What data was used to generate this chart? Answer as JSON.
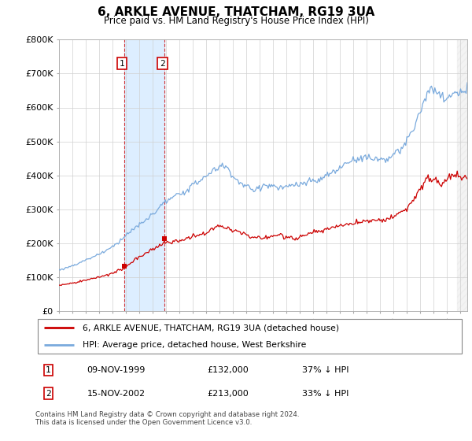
{
  "title": "6, ARKLE AVENUE, THATCHAM, RG19 3UA",
  "subtitle": "Price paid vs. HM Land Registry's House Price Index (HPI)",
  "legend_line1": "6, ARKLE AVENUE, THATCHAM, RG19 3UA (detached house)",
  "legend_line2": "HPI: Average price, detached house, West Berkshire",
  "transaction1_date": "09-NOV-1999",
  "transaction1_price": "£132,000",
  "transaction1_hpi": "37% ↓ HPI",
  "transaction1_year": 1999.87,
  "transaction1_value": 132000,
  "transaction2_date": "15-NOV-2002",
  "transaction2_price": "£213,000",
  "transaction2_hpi": "33% ↓ HPI",
  "transaction2_year": 2002.87,
  "transaction2_value": 213000,
  "hpi_color": "#7aaadd",
  "price_color": "#cc0000",
  "shaded_color": "#ddeeff",
  "footer_text": "Contains HM Land Registry data © Crown copyright and database right 2024.\nThis data is licensed under the Open Government Licence v3.0.",
  "ylim": [
    0,
    800000
  ],
  "yticks": [
    0,
    100000,
    200000,
    300000,
    400000,
    500000,
    600000,
    700000,
    800000
  ],
  "ytick_labels": [
    "£0",
    "£100K",
    "£200K",
    "£300K",
    "£400K",
    "£500K",
    "£600K",
    "£700K",
    "£800K"
  ],
  "xmin": 1995.0,
  "xmax": 2025.5
}
